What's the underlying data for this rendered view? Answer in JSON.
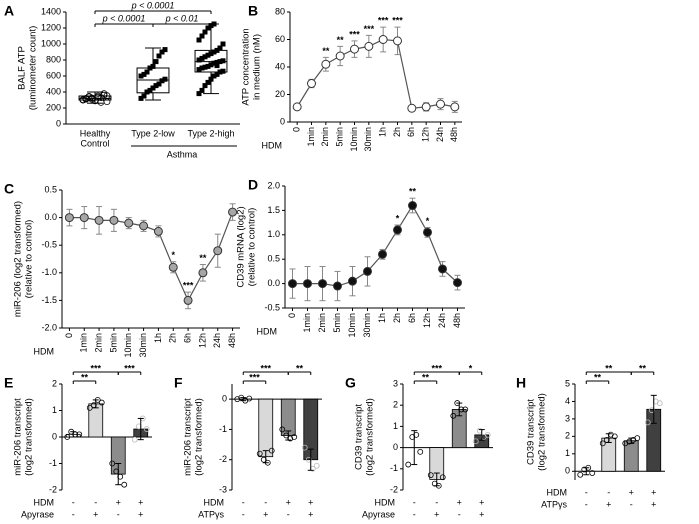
{
  "chart_data": [
    {
      "type": "box",
      "panel": "A",
      "y_label": [
        "BALF ATP",
        "(luminometer count)"
      ],
      "categories": [
        [
          "Healthy",
          "Control"
        ],
        [
          "Type 2-low"
        ],
        [
          "Type 2-high"
        ]
      ],
      "group_label": "Asthma",
      "boxes": [
        {
          "min": 260,
          "q1": 300,
          "median": 320,
          "q3": 350,
          "max": 400
        },
        {
          "min": 300,
          "q1": 390,
          "median": 550,
          "q3": 700,
          "max": 950
        },
        {
          "min": 380,
          "q1": 650,
          "median": 780,
          "q3": 920,
          "max": 1250
        }
      ],
      "points": [
        [
          300,
          320,
          340,
          310,
          290,
          350,
          330,
          360,
          280,
          305,
          315,
          345,
          325,
          295,
          335,
          270,
          380,
          355,
          300,
          310
        ],
        [
          320,
          350,
          400,
          420,
          450,
          480,
          500,
          540,
          560,
          600,
          620,
          650,
          700,
          720,
          780,
          850,
          900,
          930
        ],
        [
          380,
          420,
          480,
          520,
          560,
          600,
          620,
          650,
          660,
          680,
          700,
          710,
          720,
          740,
          760,
          770,
          780,
          790,
          800,
          820,
          840,
          860,
          880,
          900,
          920,
          950,
          1000,
          1050,
          1100,
          1150,
          1200,
          1230,
          1250,
          730
        ]
      ],
      "comparisons": [
        "p < 0.0001",
        "p < 0.0001",
        "p < 0.01"
      ],
      "ylim": [
        0,
        1400
      ],
      "yticks": [
        0,
        200,
        400,
        600,
        800,
        1000,
        1200,
        1400
      ]
    },
    {
      "type": "line",
      "panel": "B",
      "y_label": [
        "ATP concentration",
        "in medium (nM)"
      ],
      "x_prefix": "HDM",
      "marker_fill": "#ffffff",
      "categories": [
        "0",
        "1min",
        "2min",
        "5min",
        "10min",
        "30min",
        "1h",
        "2h",
        "6h",
        "12h",
        "24h",
        "48h"
      ],
      "values": [
        11,
        28,
        42,
        48,
        53,
        55,
        60,
        59,
        10,
        11,
        13,
        11
      ],
      "errors": [
        0,
        3,
        5,
        7,
        6,
        8,
        9,
        10,
        1,
        3,
        4,
        4
      ],
      "significance": [
        null,
        null,
        "**",
        "**",
        "***",
        "***",
        "***",
        "***",
        null,
        null,
        null,
        null
      ],
      "ylim": [
        0,
        80
      ],
      "yticks": [
        0,
        20,
        40,
        60,
        80
      ]
    },
    {
      "type": "line",
      "panel": "C",
      "y_label": [
        "miR-206 (log2 transformed)",
        "(relative to control)"
      ],
      "x_prefix": "HDM",
      "marker_fill": "#a6a6a6",
      "categories": [
        "0",
        "1min",
        "2min",
        "5min",
        "10min",
        "30min",
        "1h",
        "2h",
        "6h",
        "12h",
        "24h",
        "48h"
      ],
      "values": [
        0,
        0,
        -0.05,
        -0.05,
        -0.1,
        -0.15,
        -0.25,
        -0.9,
        -1.5,
        -1.0,
        -0.6,
        0.1
      ],
      "errors": [
        0.15,
        0.2,
        0.25,
        0.2,
        0.1,
        0.1,
        0.1,
        0.1,
        0.15,
        0.15,
        0.3,
        0.15
      ],
      "significance": [
        null,
        null,
        null,
        null,
        null,
        null,
        null,
        "*",
        "***",
        "**",
        null,
        null
      ],
      "ylim": [
        -2,
        0.5
      ],
      "yticks": [
        0.5,
        {
          "value": 0,
          "label": "0.0"
        },
        -0.5,
        {
          "value": -1,
          "label": "-1.0"
        },
        -1.5,
        {
          "value": -2,
          "label": "-2.0"
        }
      ]
    },
    {
      "type": "line",
      "panel": "D",
      "y_label": [
        "CD39 mRNA (log2)",
        "(relative to control)"
      ],
      "x_prefix": "HDM",
      "marker_fill": "#111111",
      "categories": [
        "0",
        "1min",
        "2min",
        "5min",
        "10min",
        "30min",
        "1h",
        "2h",
        "6h",
        "12h",
        "24h",
        "48h"
      ],
      "values": [
        0,
        0,
        0,
        -0.05,
        0.05,
        0.25,
        0.6,
        1.1,
        1.6,
        1.05,
        0.3,
        0.02
      ],
      "errors": [
        0.3,
        0.35,
        0.35,
        0.3,
        0.3,
        0.3,
        0.1,
        0.1,
        0.15,
        0.1,
        0.15,
        0.15
      ],
      "significance": [
        null,
        null,
        null,
        null,
        null,
        null,
        null,
        "*",
        "**",
        "*",
        null,
        null
      ],
      "ylim": [
        -0.5,
        2
      ],
      "yticks": [
        -0.5,
        {
          "value": 0,
          "label": "0.0"
        },
        0.5,
        {
          "value": 1,
          "label": "1.0"
        },
        1.5,
        {
          "value": 2,
          "label": "2.0"
        }
      ]
    },
    {
      "type": "bar",
      "panel": "E",
      "y_label": [
        "miR-206 transcript",
        "(log2 transformed)"
      ],
      "conditions": [
        {
          "name": "HDM",
          "values": [
            "-",
            "-",
            "+",
            "+"
          ]
        },
        {
          "name": "Apyrase",
          "values": [
            "-",
            "+",
            "-",
            "+"
          ]
        }
      ],
      "colors": [
        "#ffffff",
        "#d9d9d9",
        "#8c8c8c",
        "#404040"
      ],
      "values": [
        0.1,
        1.25,
        -1.4,
        0.3
      ],
      "errors": [
        0.1,
        0.15,
        0.4,
        0.4
      ],
      "points": [
        [
          0.0,
          0.2,
          0.1,
          0.1
        ],
        [
          1.1,
          1.2,
          1.4,
          1.3
        ],
        [
          -1.0,
          -1.3,
          -1.5,
          -1.8
        ],
        [
          -0.1,
          0.4,
          0.7,
          0.3
        ]
      ],
      "significance": [
        "**",
        "***",
        "***"
      ],
      "ylim": [
        -2,
        2
      ],
      "yticks": [
        -2,
        -1,
        0,
        1,
        2
      ]
    },
    {
      "type": "bar",
      "panel": "F",
      "y_label": [
        "miR-206 transcript",
        "(log2 transformed)"
      ],
      "conditions": [
        {
          "name": "HDM",
          "values": [
            "-",
            "-",
            "+",
            "+"
          ]
        },
        {
          "name": "ATPγs",
          "values": [
            "-",
            "+",
            "-",
            "+"
          ]
        }
      ],
      "colors": [
        "#ffffff",
        "#d9d9d9",
        "#8c8c8c",
        "#404040"
      ],
      "values": [
        0,
        -1.9,
        -1.2,
        -2.0
      ],
      "errors": [
        0.05,
        0.2,
        0.15,
        0.35
      ],
      "points": [
        [
          0,
          0.05,
          -0.05,
          0.02
        ],
        [
          -1.8,
          -2.0,
          -2.1,
          -1.7
        ],
        [
          -1.0,
          -1.2,
          -1.3,
          -1.25
        ],
        [
          -1.6,
          -2.0,
          -2.3,
          -2.2
        ]
      ],
      "significance": [
        "***",
        "***",
        "**"
      ],
      "ylim": [
        -3,
        0.5
      ],
      "yticks": [
        -3,
        -2,
        -1,
        0
      ]
    },
    {
      "type": "bar",
      "panel": "G",
      "y_label": [
        "CD39 transcript",
        "(log2 transformed)"
      ],
      "conditions": [
        {
          "name": "HDM",
          "values": [
            "-",
            "-",
            "+",
            "+"
          ]
        },
        {
          "name": "Apyrase",
          "values": [
            "-",
            "+",
            "-",
            "+"
          ]
        }
      ],
      "colors": [
        "#ffffff",
        "#d9d9d9",
        "#8c8c8c",
        "#404040"
      ],
      "values": [
        0,
        -1.5,
        1.8,
        0.6
      ],
      "errors": [
        0.8,
        0.3,
        0.3,
        0.25
      ],
      "points": [
        [
          -0.8,
          0.5,
          0.6,
          -0.2
        ],
        [
          -1.3,
          -1.7,
          -1.8,
          -1.4
        ],
        [
          1.5,
          2.1,
          1.8,
          1.8
        ],
        [
          0.3,
          0.8,
          0.5,
          0.6
        ]
      ],
      "significance": [
        "**",
        "***",
        "*"
      ],
      "ylim": [
        -2,
        3
      ],
      "yticks": [
        -2,
        -1,
        0,
        1,
        2,
        3
      ]
    },
    {
      "type": "bar",
      "panel": "H",
      "y_label": [
        "CD39 transcript",
        "(log2 transformed)"
      ],
      "conditions": [
        {
          "name": "HDM",
          "values": [
            "-",
            "-",
            "+",
            "+"
          ]
        },
        {
          "name": "ATPγs",
          "values": [
            "-",
            "+",
            "-",
            "+"
          ]
        }
      ],
      "colors": [
        "#ffffff",
        "#d9d9d9",
        "#8c8c8c",
        "#404040"
      ],
      "values": [
        0,
        1.9,
        1.75,
        3.55
      ],
      "errors": [
        0.2,
        0.25,
        0.15,
        0.8
      ],
      "points": [
        [
          -0.2,
          0.1,
          0.2,
          -0.1
        ],
        [
          1.6,
          1.8,
          2.1,
          2.0
        ],
        [
          1.6,
          1.7,
          1.8,
          1.9
        ],
        [
          2.8,
          3.5,
          4.0,
          3.9
        ]
      ],
      "significance": [
        "**",
        "**",
        "**"
      ],
      "ylim": [
        -0.5,
        5
      ],
      "yticks": [
        0,
        1,
        2,
        3,
        4,
        5
      ]
    }
  ]
}
